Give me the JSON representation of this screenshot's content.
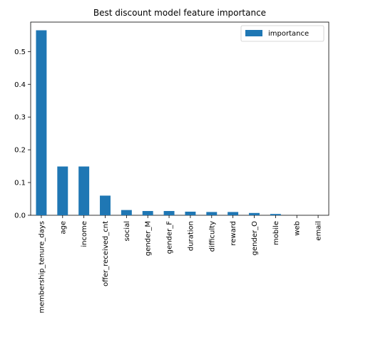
{
  "chart_data": {
    "type": "bar",
    "title": "Best discount model feature importance",
    "xlabel": "",
    "ylabel": "",
    "categories": [
      "membership_tenure_days",
      "age",
      "income",
      "offer_received_cnt",
      "social",
      "gender_M",
      "gender_F",
      "duration",
      "difficulty",
      "reward",
      "gender_O",
      "mobile",
      "web",
      "email"
    ],
    "series": [
      {
        "name": "importance",
        "color": "#1f77b4",
        "values": [
          0.565,
          0.149,
          0.149,
          0.06,
          0.016,
          0.013,
          0.013,
          0.011,
          0.01,
          0.01,
          0.007,
          0.004,
          0.0,
          0.0
        ]
      }
    ],
    "ylim": [
      0,
      0.59
    ],
    "yticks": [
      "0.0",
      "0.1",
      "0.2",
      "0.3",
      "0.4",
      "0.5"
    ],
    "legend_position": "top-right",
    "grid": false
  }
}
